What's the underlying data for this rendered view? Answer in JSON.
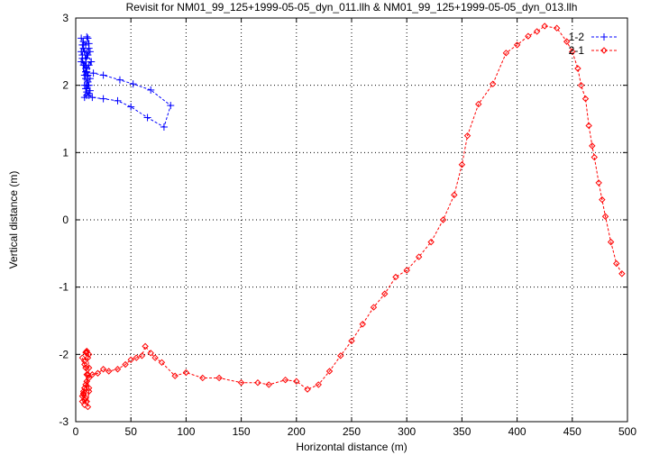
{
  "chart_data": {
    "type": "line",
    "title": "Revisit for NM01_99_125+1999-05-05_dyn_011.llh & NM01_99_125+1999-05-05_dyn_013.llh",
    "xlabel": "Horizontal distance (m)",
    "ylabel": "Vertical distance (m)",
    "xlim": [
      0,
      500
    ],
    "ylim": [
      -3,
      3
    ],
    "xticks": [
      0,
      50,
      100,
      150,
      200,
      250,
      300,
      350,
      400,
      450,
      500
    ],
    "yticks": [
      -3,
      -2,
      -1,
      0,
      1,
      2,
      3
    ],
    "grid": true,
    "legend_position": "top-right",
    "series": [
      {
        "name": "1-2",
        "color": "#0000ff",
        "marker": "plus",
        "line": "dashed",
        "x": [
          5,
          7,
          9,
          11,
          12,
          8,
          6,
          10,
          13,
          9,
          7,
          5,
          8,
          11,
          14,
          10,
          6,
          9,
          12,
          8,
          5,
          7,
          10,
          13,
          11,
          8,
          6,
          9,
          12,
          10,
          7,
          14,
          11,
          9,
          16,
          25,
          40,
          52,
          68,
          86,
          80,
          65,
          50,
          38,
          25,
          15,
          12,
          10,
          9,
          11,
          13,
          12,
          10,
          8,
          11,
          9,
          12,
          10
        ],
        "y": [
          2.7,
          2.65,
          2.6,
          2.7,
          2.55,
          2.5,
          2.6,
          2.45,
          2.5,
          2.4,
          2.55,
          2.35,
          2.3,
          2.45,
          2.35,
          2.25,
          2.4,
          2.2,
          2.3,
          2.15,
          2.5,
          2.6,
          2.2,
          2.1,
          2.05,
          2.0,
          2.45,
          2.1,
          2.0,
          1.95,
          2.3,
          2.35,
          2.15,
          2.2,
          2.18,
          2.15,
          2.08,
          2.02,
          1.93,
          1.7,
          1.38,
          1.52,
          1.68,
          1.77,
          1.8,
          1.82,
          1.85,
          1.9,
          1.95,
          2.0,
          1.92,
          1.88,
          1.85,
          1.82,
          2.05,
          2.25,
          2.62,
          2.72
        ]
      },
      {
        "name": "2-1",
        "color": "#ff0000",
        "marker": "diamond",
        "line": "dashed",
        "x": [
          495,
          490,
          485,
          480,
          477,
          474,
          470,
          468,
          465,
          462,
          458,
          455,
          450,
          445,
          436,
          425,
          418,
          410,
          400,
          390,
          378,
          365,
          355,
          350,
          343,
          333,
          322,
          311,
          300,
          290,
          280,
          270,
          260,
          250,
          240,
          230,
          220,
          210,
          200,
          190,
          175,
          165,
          150,
          130,
          115,
          100,
          90,
          78,
          72,
          68,
          63,
          60,
          55,
          50,
          45,
          38,
          30,
          25,
          20,
          15,
          12,
          10,
          8,
          7,
          6,
          8,
          10,
          12,
          9,
          7,
          6,
          8,
          11,
          12,
          10,
          8,
          6,
          9,
          11,
          10,
          8,
          7,
          9,
          12,
          11,
          9,
          10,
          12,
          8,
          10
        ],
        "y": [
          -0.8,
          -0.65,
          -0.33,
          0.05,
          0.3,
          0.55,
          0.93,
          1.1,
          1.4,
          1.8,
          2.0,
          2.25,
          2.5,
          2.65,
          2.85,
          2.88,
          2.8,
          2.73,
          2.6,
          2.48,
          2.02,
          1.72,
          1.25,
          0.82,
          0.37,
          0.0,
          -0.33,
          -0.55,
          -0.75,
          -0.85,
          -1.1,
          -1.3,
          -1.55,
          -1.8,
          -2.02,
          -2.25,
          -2.45,
          -2.52,
          -2.4,
          -2.38,
          -2.45,
          -2.42,
          -2.42,
          -2.35,
          -2.35,
          -2.27,
          -2.32,
          -2.12,
          -2.05,
          -1.98,
          -1.88,
          -2.02,
          -2.05,
          -2.08,
          -2.15,
          -2.22,
          -2.25,
          -2.22,
          -2.28,
          -2.3,
          -2.35,
          -2.4,
          -2.5,
          -2.6,
          -2.7,
          -2.75,
          -2.7,
          -2.55,
          -2.45,
          -2.55,
          -2.62,
          -2.68,
          -2.78,
          -2.5,
          -2.3,
          -2.15,
          -2.05,
          -2.2,
          -2.3,
          -2.4,
          -2.5,
          -2.58,
          -2.65,
          -2.2,
          -2.05,
          -1.97,
          -1.95,
          -2.0,
          -2.1,
          -1.97
        ]
      }
    ]
  }
}
